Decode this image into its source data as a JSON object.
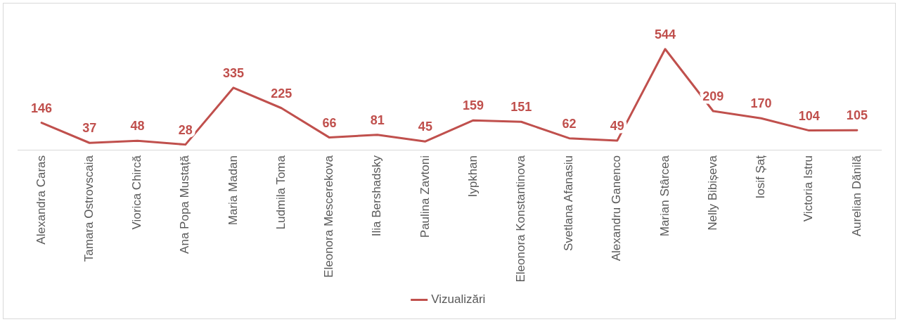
{
  "chart_data": {
    "type": "line",
    "categories": [
      "Alexandra Caras",
      "Tamara Ostrovscaia",
      "Viorica Chircă",
      "Ana Popa Mustață",
      "Maria Madan",
      "Ludmila Toma",
      "Eleonora Mescerekova",
      "Ilia Bershadsky",
      "Paulina Zavtoni",
      "Iypkhan",
      "Eleonora Konstantinova",
      "Svetlana Afanasiu",
      "Alexandru Ganenco",
      "Marian Stârcea",
      "Nelly Bibișeva",
      "Iosif Șaț",
      "Victoria Istru",
      "Aurelian Dănilă"
    ],
    "series": [
      {
        "name": "Vizualizări",
        "color": "#c0504d",
        "values": [
          146,
          37,
          48,
          28,
          335,
          225,
          66,
          81,
          45,
          159,
          151,
          62,
          49,
          544,
          209,
          170,
          104,
          105
        ]
      }
    ],
    "data_labels": true,
    "legend": "bottom",
    "marker": "none",
    "grid": false
  }
}
